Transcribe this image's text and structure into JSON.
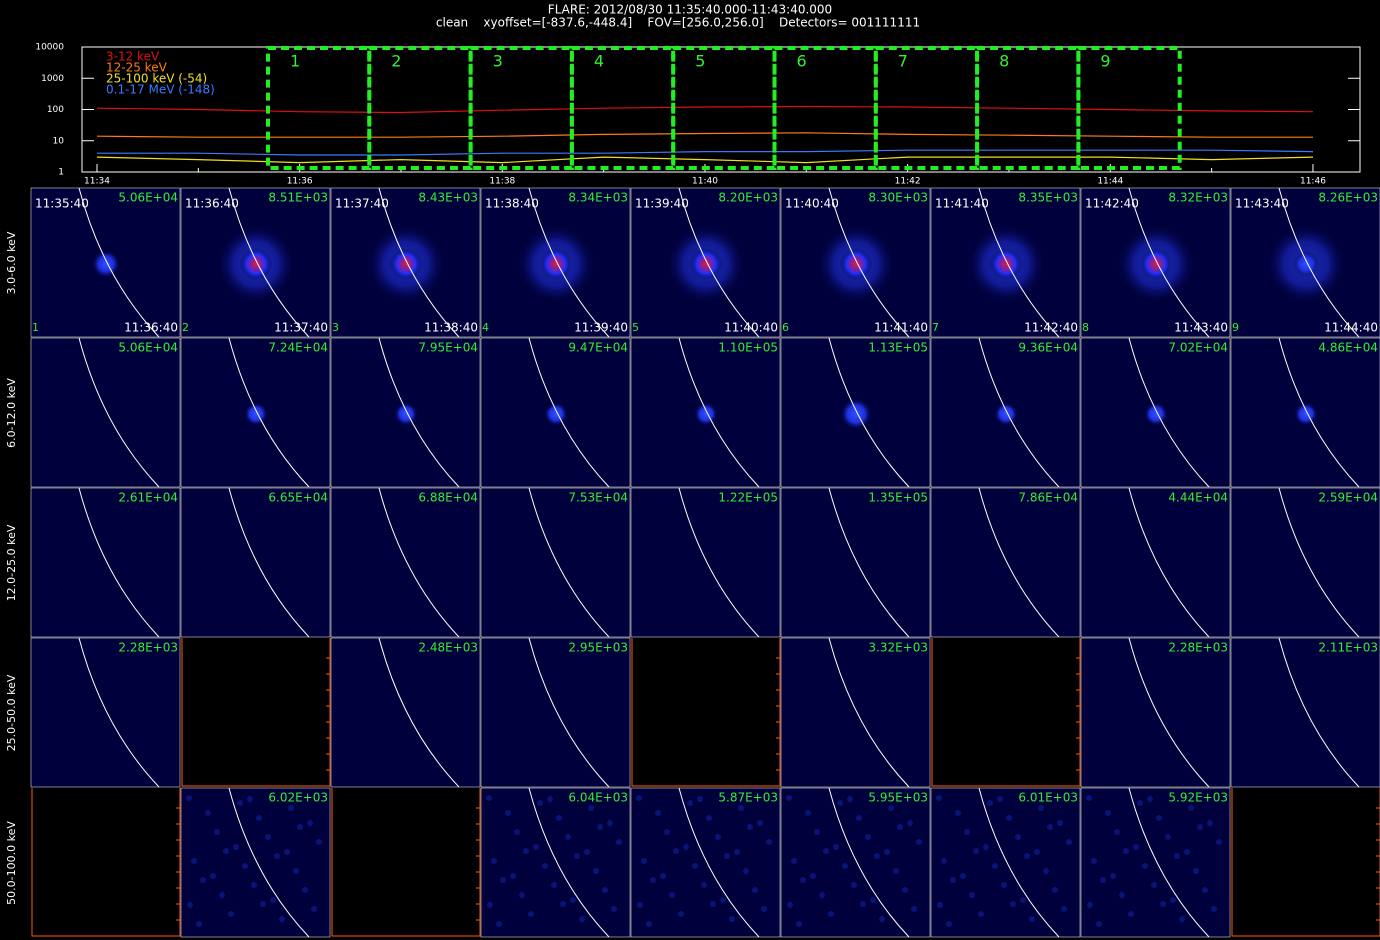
{
  "chart_data": {
    "type": "line",
    "title": "FLARE: 2012/08/30 11:35:40.000-11:43:40.000",
    "subtitle": "clean    xyoffset=[-837.6,-448.4]    FOV=[256.0,256.0]    Detectors= 001111111",
    "x": [
      "11:34",
      null,
      "11:36",
      null,
      "11:38",
      null,
      "11:40",
      null,
      "11:42",
      null,
      "11:44",
      null,
      "11:46"
    ],
    "series": [
      {
        "name": "3-12 keV",
        "color": "#e01010",
        "values": [
          110,
          100,
          85,
          80,
          95,
          110,
          120,
          125,
          120,
          110,
          100,
          90,
          85
        ]
      },
      {
        "name": "12-25 keV",
        "color": "#ff7a1a",
        "values": [
          14,
          13,
          13,
          13,
          14,
          16,
          17,
          18,
          16,
          15,
          14,
          13,
          13
        ]
      },
      {
        "name": "25-100 keV (-54)",
        "color": "#f0e020",
        "values": [
          3,
          2.5,
          2,
          2.5,
          2,
          3,
          2.5,
          2,
          3,
          3,
          3,
          2.5,
          3
        ]
      },
      {
        "name": "0.1-17 MeV (-148)",
        "color": "#3a7aff",
        "values": [
          4,
          4,
          3.5,
          3.5,
          4,
          4,
          4.5,
          4.5,
          5,
          5,
          5,
          5,
          4.5
        ]
      }
    ],
    "ylim": [
      1,
      10000
    ],
    "yticks": [
      1,
      10,
      100,
      1000,
      10000
    ],
    "log_scale": true,
    "annotations": [
      "1",
      "2",
      "3",
      "4",
      "5",
      "6",
      "7",
      "8",
      "9"
    ]
  },
  "image_grid": {
    "rows": [
      {
        "label": "3.0-6.0 keV",
        "max": [
          "5.06E+04",
          "8.51E+03",
          "8.43E+03",
          "8.34E+03",
          "8.20E+03",
          "8.30E+03",
          "8.35E+03",
          "8.32E+03",
          "8.26E+03"
        ]
      },
      {
        "label": "6.0-12.0 keV",
        "max": [
          "5.06E+04",
          "7.24E+04",
          "7.95E+04",
          "9.47E+04",
          "1.10E+05",
          "1.13E+05",
          "9.36E+04",
          "7.02E+04",
          "4.86E+04"
        ]
      },
      {
        "label": "12.0-25.0 keV",
        "max": [
          "2.61E+04",
          "6.65E+04",
          "6.88E+04",
          "7.53E+04",
          "1.22E+05",
          "1.35E+05",
          "7.86E+04",
          "4.44E+04",
          "2.59E+04"
        ]
      },
      {
        "label": "25.0-50.0 keV",
        "max": [
          "2.28E+03",
          null,
          "2.48E+03",
          "2.95E+03",
          null,
          "3.32E+03",
          null,
          "2.28E+03",
          "2.11E+03"
        ]
      },
      {
        "label": "50.0-100.0 keV",
        "max": [
          null,
          "6.02E+03",
          null,
          "6.04E+03",
          "5.87E+03",
          "5.95E+03",
          "6.01E+03",
          "5.92E+03",
          null
        ]
      }
    ],
    "start_times": [
      "11:35:40",
      "11:36:40",
      "11:37:40",
      "11:38:40",
      "11:39:40",
      "11:40:40",
      "11:41:40",
      "11:42:40",
      "11:43:40"
    ],
    "end_times": [
      "11:36:40",
      "11:37:40",
      "11:38:40",
      "11:39:40",
      "11:40:40",
      "11:41:40",
      "11:42:40",
      "11:43:40",
      "11:44:40"
    ],
    "indices": [
      "1",
      "2",
      "3",
      "4",
      "5",
      "6",
      "7",
      "8",
      "9"
    ]
  }
}
